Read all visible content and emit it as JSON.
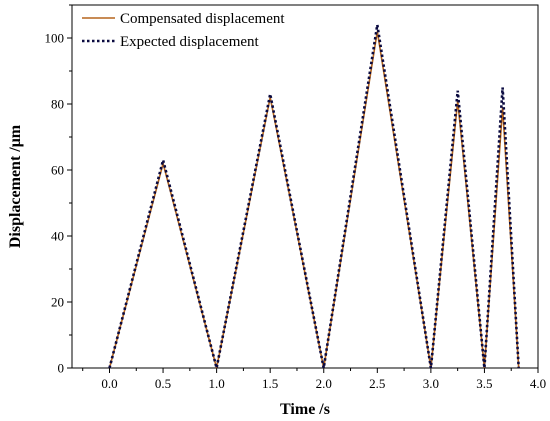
{
  "chart_data": {
    "type": "line",
    "title": "",
    "xlabel": "Time  /s",
    "ylabel": "Displacement  /μm",
    "xlim": [
      -0.35,
      4.0
    ],
    "ylim": [
      0,
      110
    ],
    "xticks": [
      0.0,
      0.5,
      1.0,
      1.5,
      2.0,
      2.5,
      3.0,
      3.5,
      4.0
    ],
    "xtick_labels": [
      "0.0",
      "0.5",
      "1.0",
      "1.5",
      "2.0",
      "2.5",
      "3.0",
      "3.5",
      "4.0"
    ],
    "yticks": [
      0,
      20,
      40,
      60,
      80,
      100
    ],
    "ytick_labels": [
      "0",
      "20",
      "40",
      "60",
      "80",
      "100"
    ],
    "grid": false,
    "legend_position": "top-left",
    "series": [
      {
        "name": "Compensated displacement",
        "color": "#b5651d",
        "style": "solid",
        "x": [
          0.0,
          0.5,
          1.0,
          1.5,
          2.0,
          2.5,
          3.0,
          3.25,
          3.5,
          3.67,
          3.82
        ],
        "y": [
          0,
          62,
          0,
          82,
          0,
          102,
          0,
          81,
          0,
          79,
          0
        ]
      },
      {
        "name": "Expected displacement",
        "color": "#0a0a40",
        "style": "dotted",
        "x": [
          0.0,
          0.5,
          1.0,
          1.5,
          2.0,
          2.5,
          3.0,
          3.25,
          3.5,
          3.67,
          3.82
        ],
        "y": [
          0,
          63,
          0,
          83,
          0,
          104,
          0,
          84,
          0,
          85,
          0
        ]
      }
    ]
  }
}
